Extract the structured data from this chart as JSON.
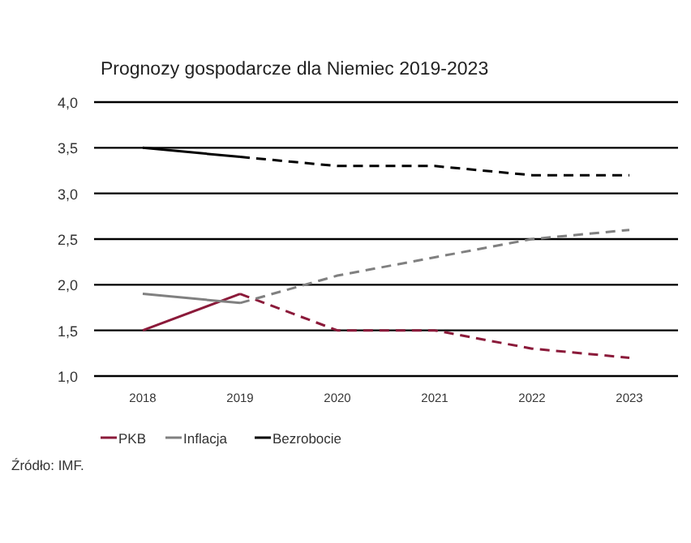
{
  "chart_data": {
    "type": "line",
    "title": "Prognozy gospodarcze dla Niemiec 2019-2023",
    "categories": [
      "2018",
      "2019",
      "2020",
      "2021",
      "2022",
      "2023"
    ],
    "series": [
      {
        "name": "PKB",
        "color": "#8b1a3a",
        "line_style": "solid",
        "values": [
          1.5,
          1.9,
          null,
          null,
          null,
          null
        ]
      },
      {
        "name": "Inflacja",
        "color": "#808080",
        "line_style": "solid",
        "values": [
          1.9,
          1.8,
          null,
          null,
          null,
          null
        ]
      },
      {
        "name": "Bezrobocie",
        "color": "#000000",
        "line_style": "solid",
        "values": [
          3.5,
          3.4,
          null,
          null,
          null,
          null
        ]
      },
      {
        "color": "#8b1a3a",
        "line_style": "dashed",
        "values": [
          null,
          1.9,
          1.5,
          1.5,
          1.3,
          1.2
        ]
      },
      {
        "color": "#808080",
        "line_style": "dashed",
        "values": [
          null,
          1.8,
          2.1,
          2.3,
          2.5,
          2.6
        ]
      },
      {
        "color": "#000000",
        "line_style": "dashed",
        "values": [
          null,
          3.4,
          3.3,
          3.3,
          3.2,
          3.2
        ]
      }
    ],
    "ylim": [
      1.0,
      4.0
    ],
    "yticks": [
      {
        "value": 1.0,
        "label": "1,0"
      },
      {
        "value": 1.5,
        "label": "1,5"
      },
      {
        "value": 2.0,
        "label": "2,0"
      },
      {
        "value": 2.5,
        "label": "2,5"
      },
      {
        "value": 3.0,
        "label": "3,0"
      },
      {
        "value": 3.5,
        "label": "3,5"
      },
      {
        "value": 4.0,
        "label": "4,0"
      }
    ],
    "grid": "y",
    "legend": "bottom",
    "annotations": [
      "Źródło: IMF."
    ]
  }
}
